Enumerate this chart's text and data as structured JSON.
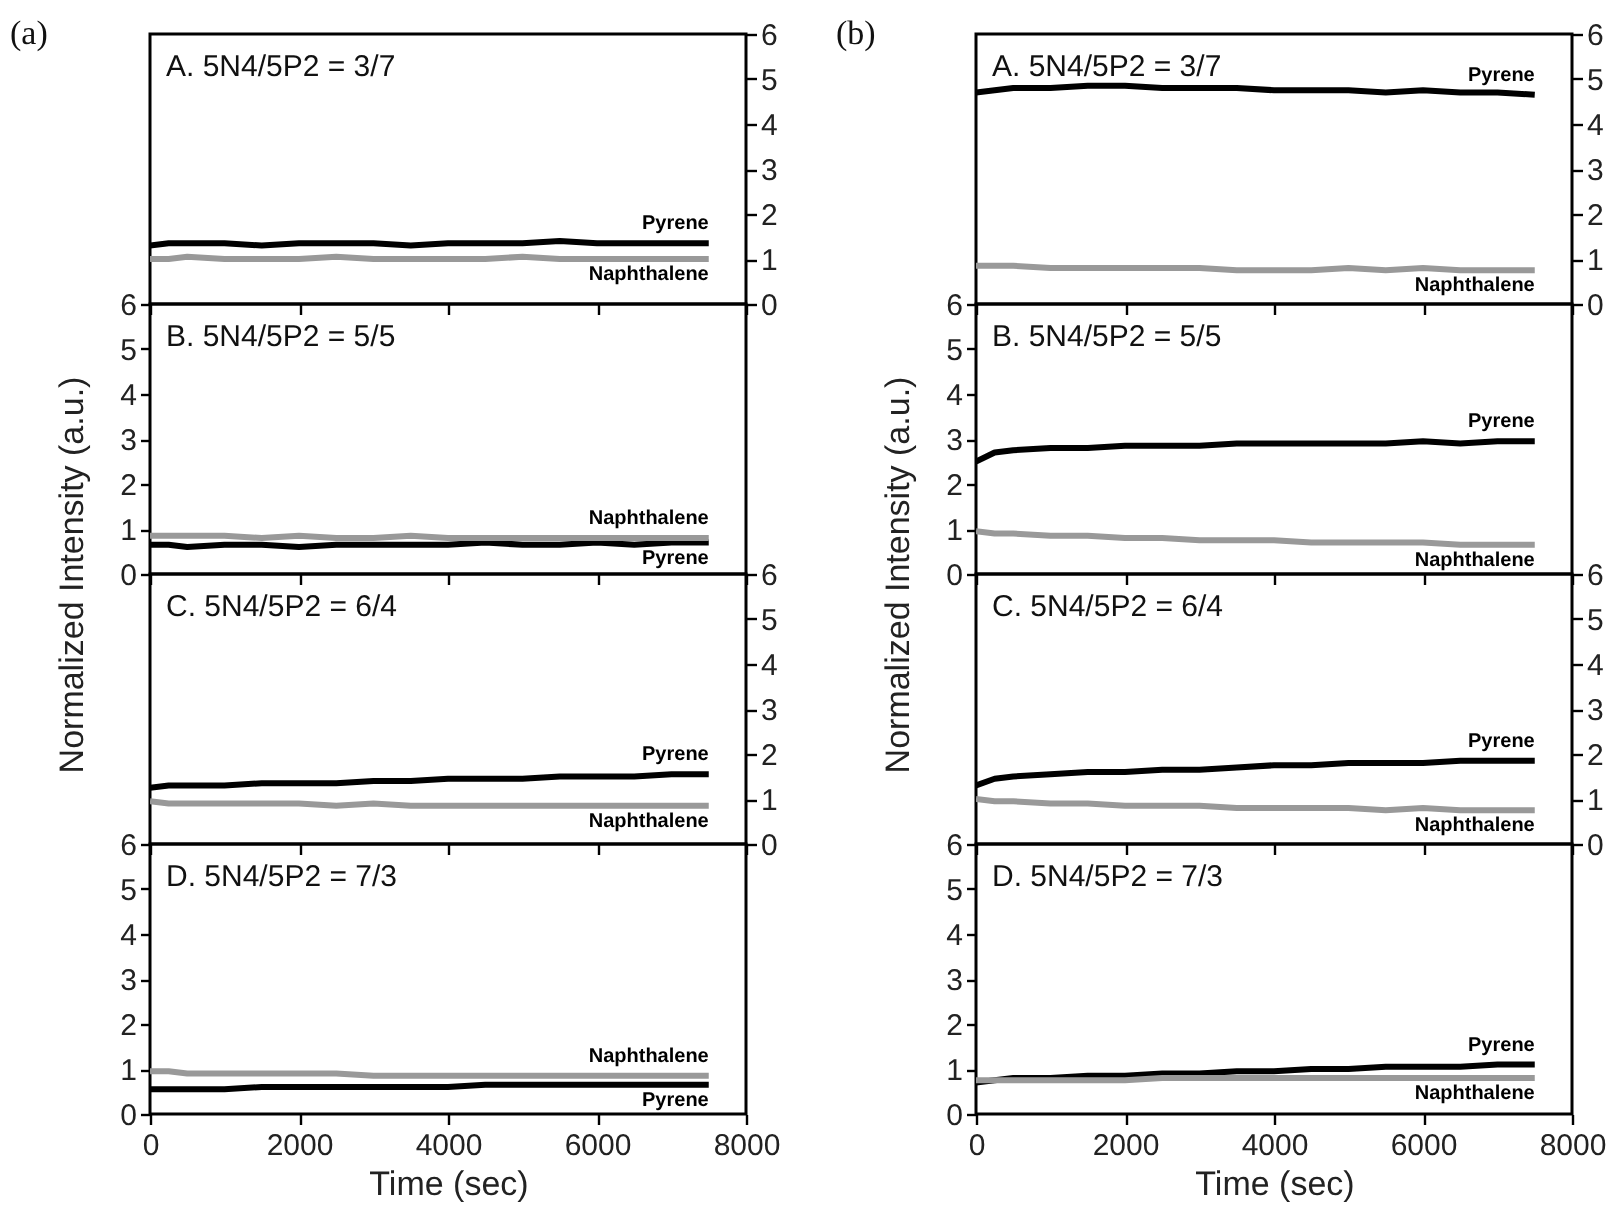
{
  "chart_data": [
    {
      "type": "line",
      "title": "A. 5N4/5P2 = 3/7",
      "annotations": [
        "(a)"
      ],
      "x": [
        0,
        250,
        500,
        1000,
        1500,
        2000,
        2500,
        3000,
        3500,
        4000,
        4500,
        5000,
        5500,
        6000,
        6500,
        7000,
        7500
      ],
      "xlim": [
        0,
        8000
      ],
      "xticks": [
        0,
        2000,
        4000,
        6000,
        8000
      ],
      "ylim": [
        0,
        6
      ],
      "yticks": [
        0,
        1,
        2,
        3,
        4,
        5,
        6
      ],
      "tick_labels": "y",
      "series": [
        {
          "name": "Pyrene",
          "color": "#000000",
          "values": [
            1.3,
            1.35,
            1.35,
            1.35,
            1.3,
            1.35,
            1.35,
            1.35,
            1.3,
            1.35,
            1.35,
            1.35,
            1.4,
            1.35,
            1.35,
            1.35,
            1.35
          ]
        },
        {
          "name": "Naphthalene",
          "color": "#999999",
          "values": [
            1.0,
            1.0,
            1.05,
            1.0,
            1.0,
            1.0,
            1.05,
            1.0,
            1.0,
            1.0,
            1.0,
            1.05,
            1.0,
            1.0,
            1.0,
            1.0,
            1.0
          ]
        }
      ]
    },
    {
      "type": "line",
      "title": "B. 5N4/5P2 = 5/5",
      "ylabel": "Normalized Intensity (a.u.)",
      "x": [
        0,
        250,
        500,
        1000,
        1500,
        2000,
        2500,
        3000,
        3500,
        4000,
        4500,
        5000,
        5500,
        6000,
        6500,
        7000,
        7500
      ],
      "xlim": [
        0,
        8000
      ],
      "xticks": [
        0,
        2000,
        4000,
        6000,
        8000
      ],
      "ylim": [
        0,
        6
      ],
      "yticks": [
        0,
        1,
        2,
        3,
        4,
        5,
        6
      ],
      "tick_labels": "y",
      "series": [
        {
          "name": "Pyrene",
          "color": "#000000",
          "values": [
            0.65,
            0.65,
            0.6,
            0.65,
            0.65,
            0.6,
            0.65,
            0.65,
            0.65,
            0.65,
            0.7,
            0.65,
            0.65,
            0.7,
            0.65,
            0.7,
            0.7
          ]
        },
        {
          "name": "Naphthalene",
          "color": "#999999",
          "values": [
            0.85,
            0.85,
            0.85,
            0.85,
            0.8,
            0.85,
            0.8,
            0.8,
            0.85,
            0.8,
            0.8,
            0.8,
            0.8,
            0.8,
            0.8,
            0.8,
            0.8
          ]
        }
      ]
    },
    {
      "type": "line",
      "title": "C. 5N4/5P2 = 6/4",
      "x": [
        0,
        250,
        500,
        1000,
        1500,
        2000,
        2500,
        3000,
        3500,
        4000,
        4500,
        5000,
        5500,
        6000,
        6500,
        7000,
        7500
      ],
      "xlim": [
        0,
        8000
      ],
      "xticks": [
        0,
        2000,
        4000,
        6000,
        8000
      ],
      "ylim": [
        0,
        6
      ],
      "yticks": [
        0,
        1,
        2,
        3,
        4,
        5,
        6
      ],
      "tick_labels": "y",
      "series": [
        {
          "name": "Pyrene",
          "color": "#000000",
          "values": [
            1.25,
            1.3,
            1.3,
            1.3,
            1.35,
            1.35,
            1.35,
            1.4,
            1.4,
            1.45,
            1.45,
            1.45,
            1.5,
            1.5,
            1.5,
            1.55,
            1.55
          ]
        },
        {
          "name": "Naphthalene",
          "color": "#999999",
          "values": [
            0.95,
            0.9,
            0.9,
            0.9,
            0.9,
            0.9,
            0.85,
            0.9,
            0.85,
            0.85,
            0.85,
            0.85,
            0.85,
            0.85,
            0.85,
            0.85,
            0.85
          ]
        }
      ]
    },
    {
      "type": "line",
      "title": "D. 5N4/5P2 = 7/3",
      "xlabel": "Time (sec)",
      "x": [
        0,
        250,
        500,
        1000,
        1500,
        2000,
        2500,
        3000,
        3500,
        4000,
        4500,
        5000,
        5500,
        6000,
        6500,
        7000,
        7500
      ],
      "xlim": [
        0,
        8000
      ],
      "xticks": [
        0,
        2000,
        4000,
        6000,
        8000
      ],
      "ylim": [
        0,
        6
      ],
      "yticks": [
        0,
        1,
        2,
        3,
        4,
        5,
        6
      ],
      "series": [
        {
          "name": "Pyrene",
          "color": "#000000",
          "values": [
            0.55,
            0.55,
            0.55,
            0.55,
            0.6,
            0.6,
            0.6,
            0.6,
            0.6,
            0.6,
            0.65,
            0.65,
            0.65,
            0.65,
            0.65,
            0.65,
            0.65
          ]
        },
        {
          "name": "Naphthalene",
          "color": "#999999",
          "values": [
            0.95,
            0.95,
            0.9,
            0.9,
            0.9,
            0.9,
            0.9,
            0.85,
            0.85,
            0.85,
            0.85,
            0.85,
            0.85,
            0.85,
            0.85,
            0.85,
            0.85
          ]
        }
      ]
    },
    {
      "type": "line",
      "title": "A. 5N4/5P2 = 3/7",
      "annotations": [
        "(b)"
      ],
      "x": [
        0,
        250,
        500,
        1000,
        1500,
        2000,
        2500,
        3000,
        3500,
        4000,
        4500,
        5000,
        5500,
        6000,
        6500,
        7000,
        7500
      ],
      "xlim": [
        0,
        8000
      ],
      "xticks": [
        0,
        2000,
        4000,
        6000,
        8000
      ],
      "ylim": [
        0,
        6
      ],
      "yticks": [
        0,
        1,
        2,
        3,
        4,
        5,
        6
      ],
      "tick_labels": "y",
      "series": [
        {
          "name": "Pyrene",
          "color": "#000000",
          "values": [
            4.7,
            4.75,
            4.8,
            4.8,
            4.85,
            4.85,
            4.8,
            4.8,
            4.8,
            4.75,
            4.75,
            4.75,
            4.7,
            4.75,
            4.7,
            4.7,
            4.65
          ]
        },
        {
          "name": "Naphthalene",
          "color": "#999999",
          "values": [
            0.85,
            0.85,
            0.85,
            0.8,
            0.8,
            0.8,
            0.8,
            0.8,
            0.75,
            0.75,
            0.75,
            0.8,
            0.75,
            0.8,
            0.75,
            0.75,
            0.75
          ]
        }
      ]
    },
    {
      "type": "line",
      "title": "B. 5N4/5P2 = 5/5",
      "ylabel": "Normalized Intensity (a.u.)",
      "x": [
        0,
        250,
        500,
        1000,
        1500,
        2000,
        2500,
        3000,
        3500,
        4000,
        4500,
        5000,
        5500,
        6000,
        6500,
        7000,
        7500
      ],
      "xlim": [
        0,
        8000
      ],
      "xticks": [
        0,
        2000,
        4000,
        6000,
        8000
      ],
      "ylim": [
        0,
        6
      ],
      "yticks": [
        0,
        1,
        2,
        3,
        4,
        5,
        6
      ],
      "tick_labels": "y",
      "series": [
        {
          "name": "Pyrene",
          "color": "#000000",
          "values": [
            2.5,
            2.7,
            2.75,
            2.8,
            2.8,
            2.85,
            2.85,
            2.85,
            2.9,
            2.9,
            2.9,
            2.9,
            2.9,
            2.95,
            2.9,
            2.95,
            2.95
          ]
        },
        {
          "name": "Naphthalene",
          "color": "#999999",
          "values": [
            0.95,
            0.9,
            0.9,
            0.85,
            0.85,
            0.8,
            0.8,
            0.75,
            0.75,
            0.75,
            0.7,
            0.7,
            0.7,
            0.7,
            0.65,
            0.65,
            0.65
          ]
        }
      ]
    },
    {
      "type": "line",
      "title": "C. 5N4/5P2 = 6/4",
      "x": [
        0,
        250,
        500,
        1000,
        1500,
        2000,
        2500,
        3000,
        3500,
        4000,
        4500,
        5000,
        5500,
        6000,
        6500,
        7000,
        7500
      ],
      "xlim": [
        0,
        8000
      ],
      "xticks": [
        0,
        2000,
        4000,
        6000,
        8000
      ],
      "ylim": [
        0,
        6
      ],
      "yticks": [
        0,
        1,
        2,
        3,
        4,
        5,
        6
      ],
      "tick_labels": "y",
      "series": [
        {
          "name": "Pyrene",
          "color": "#000000",
          "values": [
            1.3,
            1.45,
            1.5,
            1.55,
            1.6,
            1.6,
            1.65,
            1.65,
            1.7,
            1.75,
            1.75,
            1.8,
            1.8,
            1.8,
            1.85,
            1.85,
            1.85
          ]
        },
        {
          "name": "Naphthalene",
          "color": "#999999",
          "values": [
            1.0,
            0.95,
            0.95,
            0.9,
            0.9,
            0.85,
            0.85,
            0.85,
            0.8,
            0.8,
            0.8,
            0.8,
            0.75,
            0.8,
            0.75,
            0.75,
            0.75
          ]
        }
      ]
    },
    {
      "type": "line",
      "title": "D. 5N4/5P2 = 7/3",
      "xlabel": "Time (sec)",
      "x": [
        0,
        250,
        500,
        1000,
        1500,
        2000,
        2500,
        3000,
        3500,
        4000,
        4500,
        5000,
        5500,
        6000,
        6500,
        7000,
        7500
      ],
      "xlim": [
        0,
        8000
      ],
      "xticks": [
        0,
        2000,
        4000,
        6000,
        8000
      ],
      "ylim": [
        0,
        6
      ],
      "yticks": [
        0,
        1,
        2,
        3,
        4,
        5,
        6
      ],
      "series": [
        {
          "name": "Pyrene",
          "color": "#000000",
          "values": [
            0.7,
            0.75,
            0.8,
            0.8,
            0.85,
            0.85,
            0.9,
            0.9,
            0.95,
            0.95,
            1.0,
            1.0,
            1.05,
            1.05,
            1.05,
            1.1,
            1.1
          ]
        },
        {
          "name": "Naphthalene",
          "color": "#999999",
          "values": [
            0.75,
            0.75,
            0.75,
            0.75,
            0.75,
            0.75,
            0.8,
            0.8,
            0.8,
            0.8,
            0.8,
            0.8,
            0.8,
            0.8,
            0.8,
            0.8,
            0.8
          ]
        }
      ]
    }
  ]
}
